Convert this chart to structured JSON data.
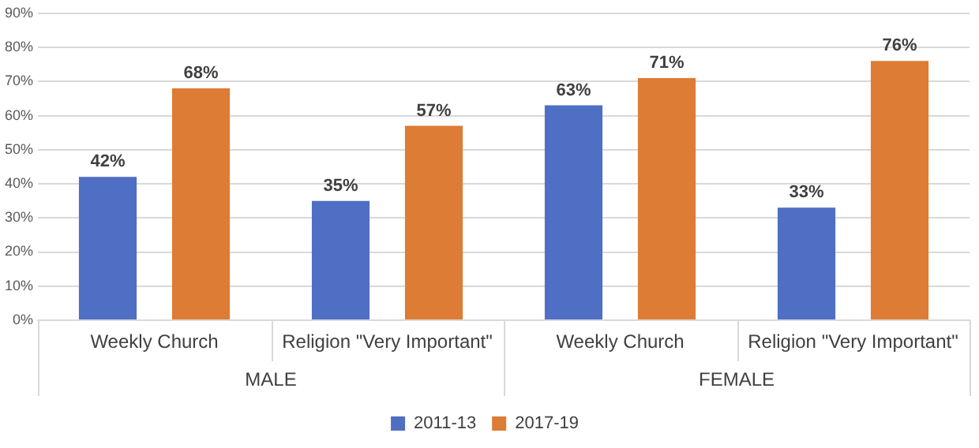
{
  "chart_data": {
    "type": "bar",
    "categories": [
      "Weekly Church",
      "Religion \"Very Important\"",
      "Weekly Church",
      "Religion \"Very Important\""
    ],
    "series": [
      {
        "name": "2011-13",
        "color": "#4f6fc4",
        "values": [
          42,
          35,
          63,
          33
        ],
        "value_labels": [
          "42%",
          "35%",
          "63%",
          "33%"
        ]
      },
      {
        "name": "2017-19",
        "color": "#dd7c34",
        "values": [
          68,
          57,
          71,
          76
        ],
        "value_labels": [
          "68%",
          "57%",
          "71%",
          "76%"
        ]
      }
    ],
    "ylim": [
      0,
      90
    ],
    "yticks": [
      {
        "value": 0,
        "label": "0%"
      },
      {
        "value": 10,
        "label": "10%"
      },
      {
        "value": 20,
        "label": "20%"
      },
      {
        "value": 30,
        "label": "30%"
      },
      {
        "value": 40,
        "label": "40%"
      },
      {
        "value": 50,
        "label": "50%"
      },
      {
        "value": 60,
        "label": "60%"
      },
      {
        "value": 70,
        "label": "70%"
      },
      {
        "value": 80,
        "label": "80%"
      },
      {
        "value": 90,
        "label": "90%"
      }
    ],
    "grid": "y",
    "legend": "bottom",
    "annotations": [
      "MALE",
      "FEMALE"
    ]
  }
}
